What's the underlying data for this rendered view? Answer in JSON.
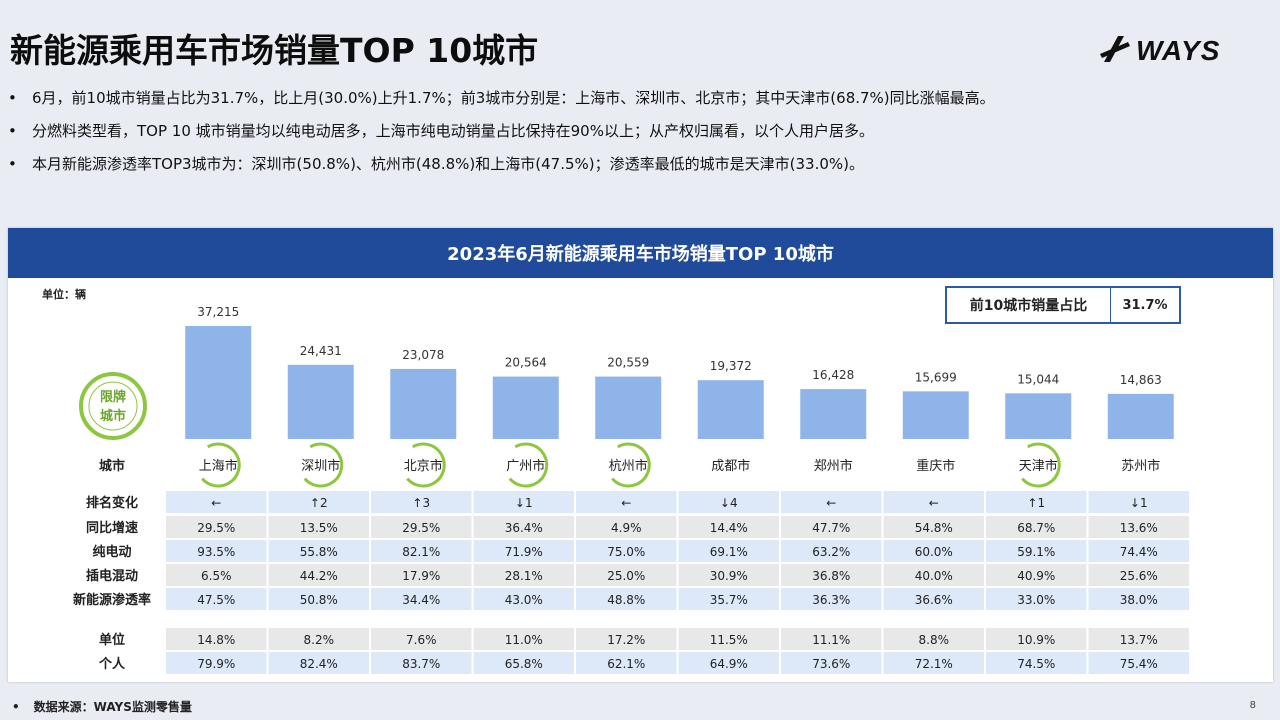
{
  "header": {
    "title": "新能源乘用车市场销量TOP 10城市",
    "logo_text": "WAYS"
  },
  "bullets": [
    "6月，前10城市销量占比为31.7%，比上月(30.0%)上升1.7%；前3城市分别是：上海市、深圳市、北京市；其中天津市(68.7%)同比涨幅最高。",
    "分燃料类型看，TOP 10 城市销量均以纯电动居多，上海市纯电动销量占比保持在90%以上；从产权归属看，以个人用户居多。",
    "本月新能源渗透率TOP3城市为：深圳市(50.8%)、杭州市(48.8%)和上海市(47.5%)；渗透率最低的城市是天津市(33.0%)。"
  ],
  "panel": {
    "title": "2023年6月新能源乘用车市场销量TOP 10城市",
    "unit_note": "单位：辆",
    "share_label": "前10城市销量占比",
    "share_value": "31.7%",
    "restricted_badge": [
      "限牌",
      "城市"
    ]
  },
  "chart_data": {
    "type": "bar",
    "title": "2023年6月新能源乘用车市场销量TOP 10城市",
    "categories": [
      "上海市",
      "深圳市",
      "北京市",
      "广州市",
      "杭州市",
      "成都市",
      "郑州市",
      "重庆市",
      "天津市",
      "苏州市"
    ],
    "values": [
      37215,
      24431,
      23078,
      20564,
      20559,
      19372,
      16428,
      15699,
      15044,
      14863
    ],
    "value_labels": [
      "37,215",
      "24,431",
      "23,078",
      "20,564",
      "20,559",
      "19,372",
      "16,428",
      "15,699",
      "15,044",
      "14,863"
    ],
    "restricted_cities": [
      "上海市",
      "深圳市",
      "北京市",
      "广州市",
      "杭州市",
      "天津市"
    ],
    "bar_color": "#8fb4ea",
    "ylim": [
      0,
      40000
    ]
  },
  "table": {
    "city_header": "城市",
    "rows": [
      {
        "label": "排名变化",
        "values": [
          "←",
          "↑2",
          "↑3",
          "↓1",
          "←",
          "↓4",
          "←",
          "←",
          "↑1",
          "↓1"
        ]
      },
      {
        "label": "同比增速",
        "values": [
          "29.5%",
          "13.5%",
          "29.5%",
          "36.4%",
          "4.9%",
          "14.4%",
          "47.7%",
          "54.8%",
          "68.7%",
          "13.6%"
        ]
      },
      {
        "label": "纯电动",
        "values": [
          "93.5%",
          "55.8%",
          "82.1%",
          "71.9%",
          "75.0%",
          "69.1%",
          "63.2%",
          "60.0%",
          "59.1%",
          "74.4%"
        ]
      },
      {
        "label": "插电混动",
        "values": [
          "6.5%",
          "44.2%",
          "17.9%",
          "28.1%",
          "25.0%",
          "30.9%",
          "36.8%",
          "40.0%",
          "40.9%",
          "25.6%"
        ]
      },
      {
        "label": "新能源渗透率",
        "values": [
          "47.5%",
          "50.8%",
          "34.4%",
          "43.0%",
          "48.8%",
          "35.7%",
          "36.3%",
          "36.6%",
          "33.0%",
          "38.0%"
        ]
      },
      {
        "label": "单位",
        "values": [
          "14.8%",
          "8.2%",
          "7.6%",
          "11.0%",
          "17.2%",
          "11.5%",
          "11.1%",
          "8.8%",
          "10.9%",
          "13.7%"
        ]
      },
      {
        "label": "个人",
        "values": [
          "79.9%",
          "82.4%",
          "83.7%",
          "65.8%",
          "62.1%",
          "64.9%",
          "73.6%",
          "72.1%",
          "74.5%",
          "75.4%"
        ]
      }
    ]
  },
  "footer": {
    "source": "数据来源：WAYS监测零售量",
    "page_number": "8"
  },
  "colors": {
    "header_blue": "#1f4b9a",
    "row_blue": "#dde8f8",
    "row_gray": "#e8e8e8",
    "badge_green": "#8dc63f"
  }
}
